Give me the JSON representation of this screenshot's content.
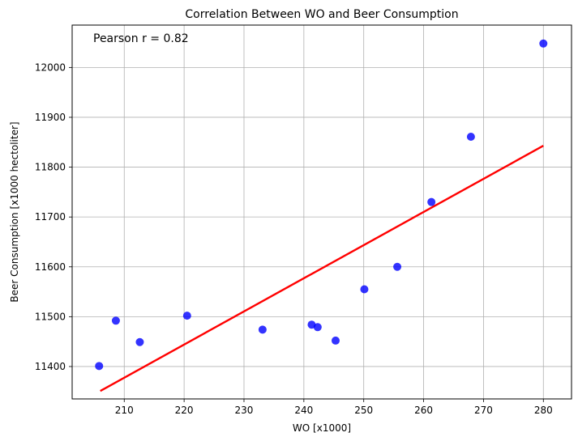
{
  "chart_data": {
    "type": "scatter",
    "title": "Correlation Between WO and Beer Consumption",
    "xlabel": "WO [x1000]",
    "ylabel": "Beer Consumption [x1000 hectoliter]",
    "xlim": [
      201.3,
      284.7
    ],
    "ylim": [
      11335,
      12085
    ],
    "xticks": [
      210,
      220,
      230,
      240,
      250,
      260,
      270,
      280
    ],
    "yticks": [
      11400,
      11500,
      11600,
      11700,
      11800,
      11900,
      12000
    ],
    "grid": true,
    "annotation": "Pearson r = 0.82",
    "colors": {
      "points": "#0000ff",
      "line": "#ff0000",
      "grid": "#b0b0b0"
    },
    "points": [
      {
        "x": 205.8,
        "y": 11401
      },
      {
        "x": 208.6,
        "y": 11492
      },
      {
        "x": 212.6,
        "y": 11449
      },
      {
        "x": 220.5,
        "y": 11502
      },
      {
        "x": 233.1,
        "y": 11474
      },
      {
        "x": 241.3,
        "y": 11484
      },
      {
        "x": 242.3,
        "y": 11479
      },
      {
        "x": 245.3,
        "y": 11452
      },
      {
        "x": 250.1,
        "y": 11555
      },
      {
        "x": 255.6,
        "y": 11600
      },
      {
        "x": 261.3,
        "y": 11730
      },
      {
        "x": 267.9,
        "y": 11861
      },
      {
        "x": 280.0,
        "y": 12048
      }
    ],
    "regression_line": {
      "x": [
        206.0,
        280.0
      ],
      "y": [
        11351,
        11843
      ]
    }
  }
}
